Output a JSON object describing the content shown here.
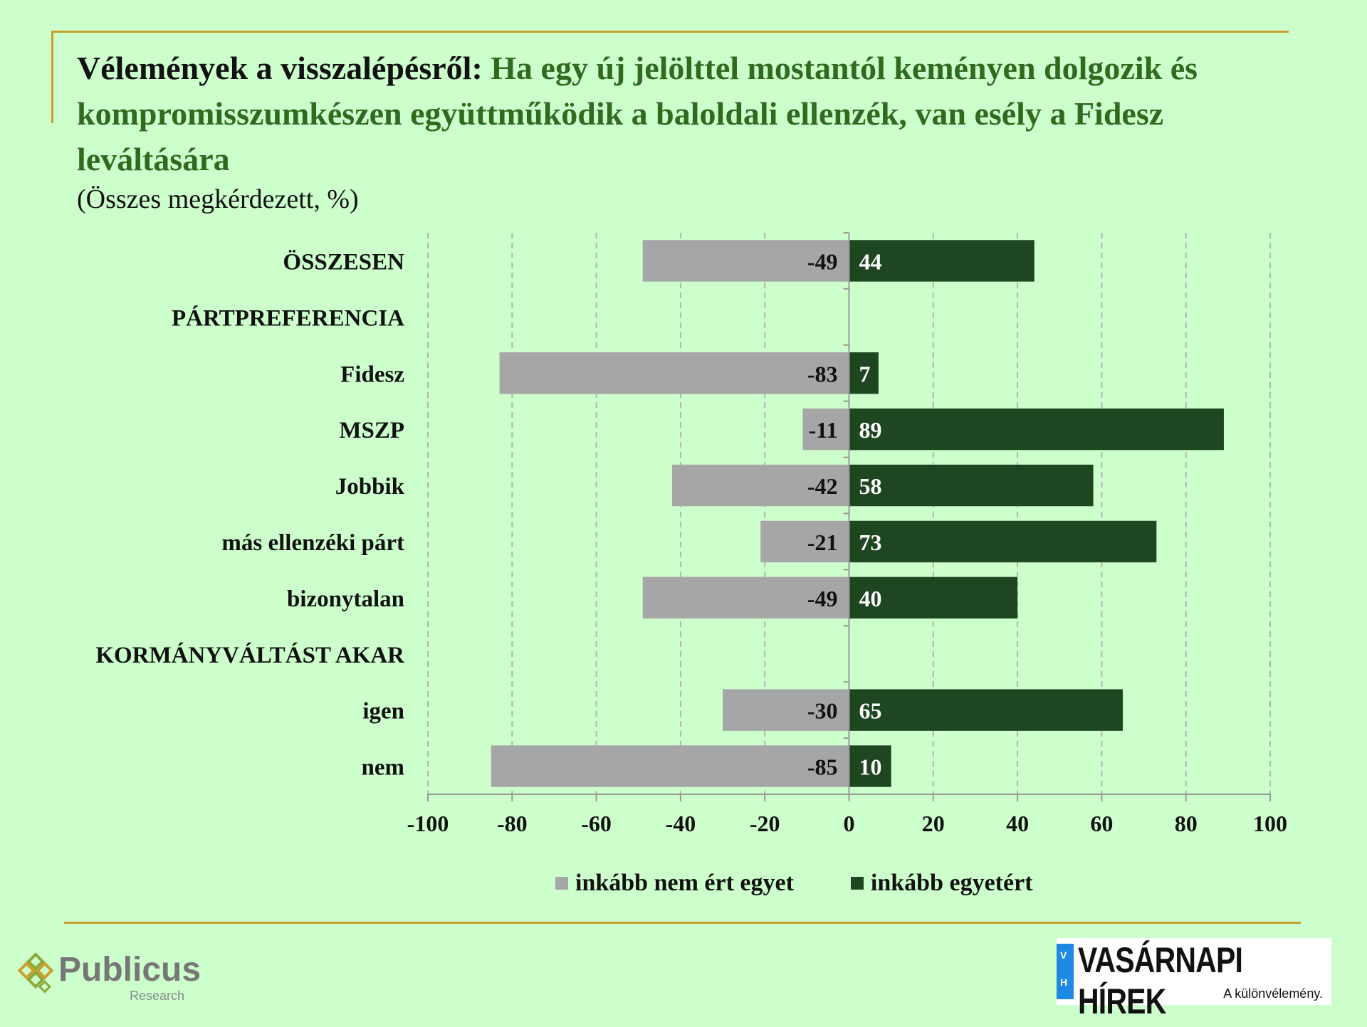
{
  "title": {
    "lead": "Vélemények a visszalépésről:",
    "rest": " Ha egy új jelölttel mostantól keményen dolgozik és kompromisszumkészen együttműködik a baloldali ellenzék, van esély a Fidesz leváltására"
  },
  "subtitle": "(Összes megkérdezett, %)",
  "colors": {
    "disagree": "#a6a6a6",
    "agree": "#1e4620",
    "background": "#ccffcc",
    "frame": "#c8a02e"
  },
  "chart_data": {
    "type": "bar",
    "orientation": "horizontal-diverging",
    "categories": [
      "ÖSSZESEN",
      "PÁRTPREFERENCIA",
      "Fidesz",
      "MSZP",
      "Jobbik",
      "más ellenzéki párt",
      "bizonytalan",
      "KORMÁNYVÁLTÁST AKAR",
      "igen",
      "nem"
    ],
    "series": [
      {
        "name": "inkább nem ért egyet",
        "values": [
          -49,
          null,
          -83,
          -11,
          -42,
          -21,
          -49,
          null,
          -30,
          -85
        ]
      },
      {
        "name": "inkább egyetért",
        "values": [
          44,
          null,
          7,
          89,
          58,
          73,
          40,
          null,
          65,
          10
        ]
      }
    ],
    "xlim": [
      -100,
      100
    ],
    "xticks": [
      -100,
      -80,
      -60,
      -40,
      -20,
      0,
      20,
      40,
      60,
      80,
      100
    ],
    "grid": true,
    "legend": "bottom"
  },
  "logos": {
    "publicus": {
      "name": "Publicus",
      "sub": "Research"
    },
    "vh": {
      "name": "VASÁRNAPI HÍREK",
      "tagline": "A különvélemény.",
      "letters": [
        "V",
        "H"
      ]
    }
  }
}
